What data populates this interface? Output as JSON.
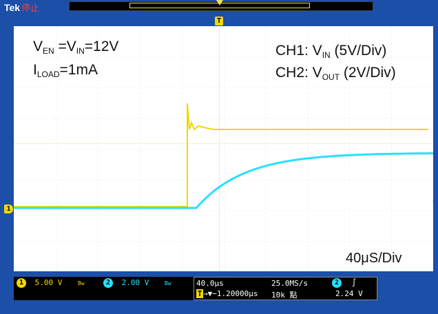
{
  "header": {
    "brand": "Tek",
    "state": "停止"
  },
  "trigger": {
    "label": "T"
  },
  "screen": {
    "venvin": {
      "v1": "V",
      "s1": "EN",
      "mid": " =V",
      "s2": "IN",
      "end": "=12V"
    },
    "iload": {
      "v": "I",
      "s": "LOAD",
      "end": "=1mA"
    },
    "ch1legend": {
      "pre": "CH1: V",
      "s": "IN",
      "post": " (5V/Div)"
    },
    "ch2legend": {
      "pre": "CH2: V",
      "s": "OUT",
      "post": " (2V/Div)"
    },
    "timebase": "40μS/Div",
    "ch1_marker": "1",
    "ch2_arrow": "◆"
  },
  "colors": {
    "ch1": "#f0d800",
    "ch2": "#27e0ff",
    "background": "#1b4fa8"
  },
  "bottom": {
    "ch1": {
      "num": "1",
      "scale": "5.00 V",
      "bw": "Bw"
    },
    "ch2": {
      "num": "2",
      "scale": "2.00 V",
      "bw": "Bw"
    },
    "horizontal": {
      "scale": "40.0μs",
      "rate": "25.0MS/s",
      "delay": "→▼−1.20000μs",
      "points": "10k 點",
      "trig_ch": "2",
      "trig_slope": "∫",
      "trig_level": "2.24 V",
      "t_label": "T"
    }
  }
}
